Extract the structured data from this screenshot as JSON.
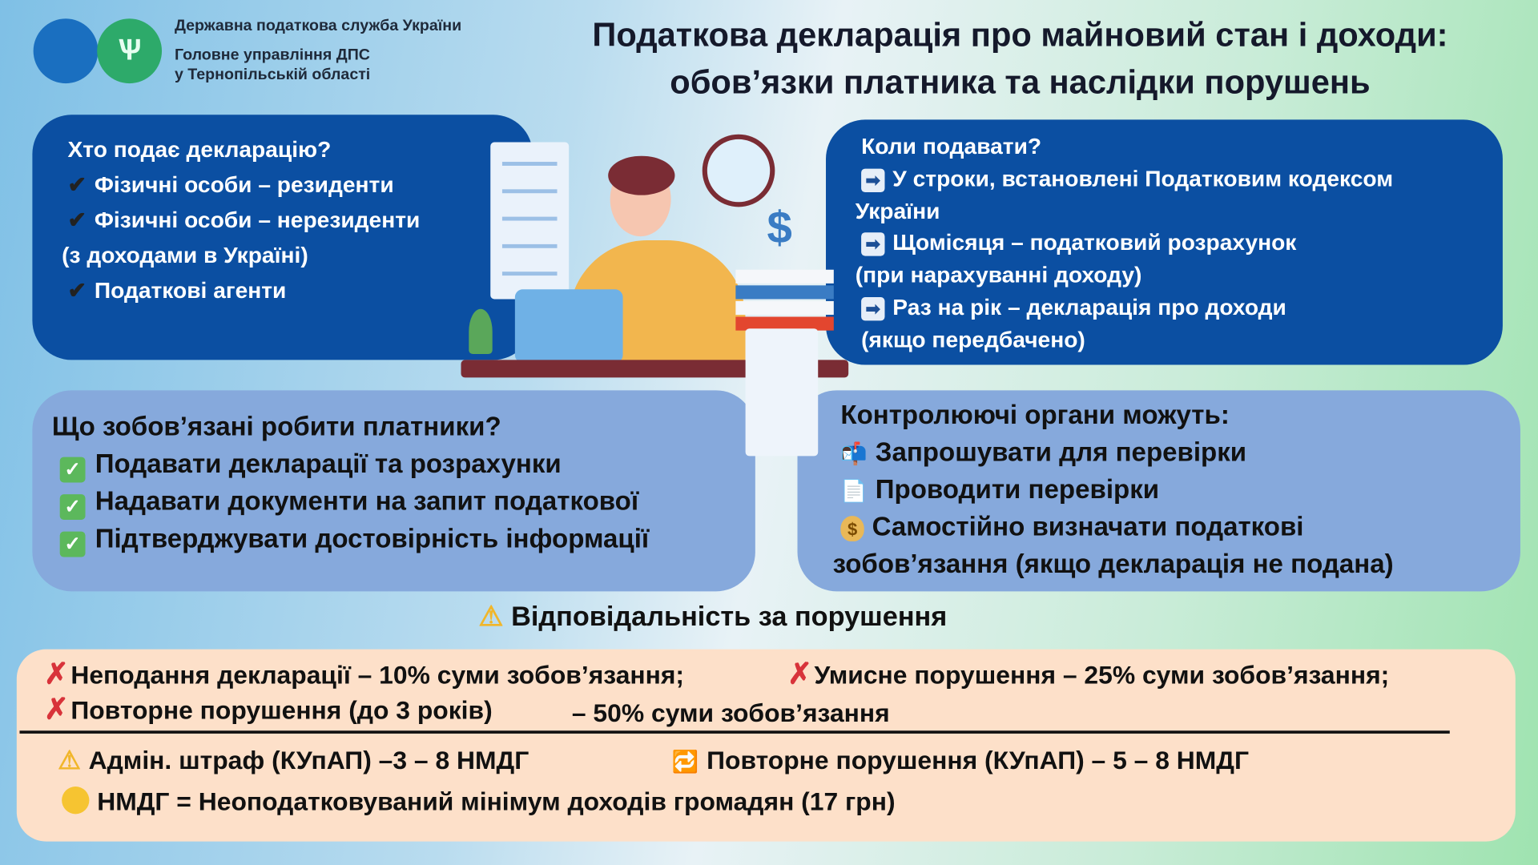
{
  "header": {
    "org_line1": "Державна податкова служба України",
    "org_line2": "Головне управління ДПС",
    "org_line3": "у Тернопільській області",
    "title_line1": "Податкова декларація про майновий стан і доходи:",
    "title_line2": "обов’язки платника та наслідки порушень"
  },
  "who": {
    "heading": "Хто подає декларацію?",
    "items": [
      "Фізичні особи – резиденти",
      "Фізичні особи – нерезиденти",
      "(з доходами в Україні)",
      "Податкові агенти"
    ]
  },
  "when": {
    "heading": "Коли подавати?",
    "items": [
      "У строки, встановлені Податковим кодексом",
      "України",
      "Щомісяця – податковий розрахунок",
      "(при нарахуванні доходу)",
      "Раз на рік – декларація про доходи",
      "(якщо передбачено)"
    ]
  },
  "duties": {
    "heading": "Що зобов’язані робити платники?",
    "items": [
      "Подавати декларації та розрахунки",
      "Надавати документи на запит податкової",
      "Підтверджувати достовірність інформації"
    ]
  },
  "control": {
    "heading": "Контролюючі органи можуть:",
    "items": [
      "Запрошувати для перевірки",
      "Проводити перевірки",
      "Самостійно визначати податкові",
      "зобов’язання (якщо декларація не подана)"
    ]
  },
  "liability": {
    "heading": "Відповідальність за порушення",
    "p1": "Неподання декларації  – 10% суми зобов’язання;",
    "p2": "Умисне порушення  – 25% суми зобов’язання;",
    "p3": "Повторне порушення (до 3 років)",
    "p3b": "– 50% суми зобов’язання",
    "fine1": "Адмін. штраф (КУпАП)  –3 – 8 НМДГ",
    "fine2": "Повторне порушення (КУпАП)  –  5 – 8 НМДГ",
    "nmdg": "НМДГ = Неоподатковуваний мінімум доходів громадян (17 грн)"
  },
  "icons": {
    "check": "✔",
    "check_box": "✓",
    "arrow": "➡",
    "warning": "⚠",
    "cross": "✗",
    "repeat": "🔁",
    "mailbox": "📬",
    "document": "📄",
    "money_bag": "$"
  },
  "colors": {
    "dark_box": "#0b4fa2",
    "light_box": "#86a9dc",
    "peach": "#fde0c9",
    "logo_blue": "#1a6fc0",
    "logo_green": "#2daa6a"
  }
}
